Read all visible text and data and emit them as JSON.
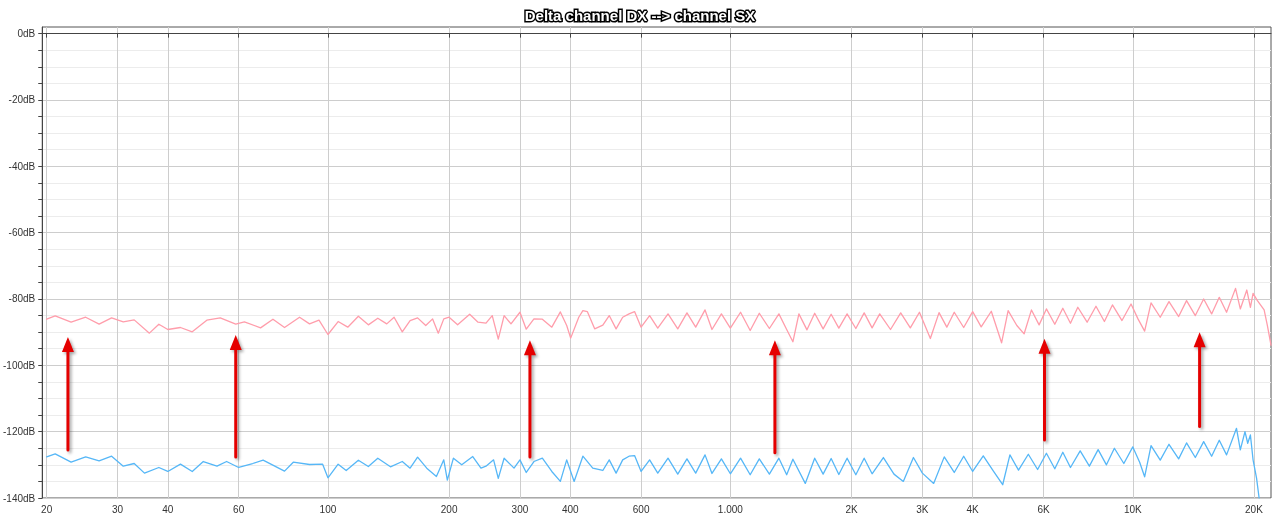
{
  "chart_data": {
    "type": "line",
    "title": "Delta channel DX --> channel SX",
    "series": [
      {
        "color": "#ff9dab",
        "x": [
          20,
          21,
          23,
          25,
          27,
          29,
          31,
          33,
          36,
          38,
          40,
          43,
          46,
          50,
          54,
          59,
          62,
          68,
          73,
          78,
          85,
          90,
          95,
          100,
          106,
          112,
          119,
          126,
          133,
          140,
          146,
          153,
          160,
          167,
          175,
          182,
          188,
          194,
          200,
          210,
          225,
          236,
          247,
          256,
          265,
          274,
          285,
          300,
          311,
          325,
          341,
          360,
          378,
          392,
          401,
          420,
          430,
          441,
          460,
          482,
          500,
          520,
          540,
          560,
          578,
          600,
          630,
          660,
          700,
          740,
          780,
          820,
          865,
          900,
          950,
          1000,
          1060,
          1120,
          1180,
          1250,
          1320,
          1380,
          1430,
          1480,
          1550,
          1620,
          1700,
          1780,
          1860,
          1950,
          2050,
          2150,
          2250,
          2350,
          2500,
          2650,
          2800,
          2950,
          3140,
          3300,
          3450,
          3600,
          3800,
          4000,
          4200,
          4450,
          4720,
          4900,
          5150,
          5370,
          5600,
          5850,
          6100,
          6400,
          6700,
          7000,
          7300,
          7700,
          8100,
          8500,
          8900,
          9400,
          9900,
          10300,
          10700,
          11100,
          11700,
          12300,
          13000,
          13600,
          14300,
          15000,
          15700,
          16400,
          17100,
          18000,
          18500,
          19200,
          19600,
          19900,
          20400,
          21200,
          21600,
          22050
        ],
        "values": [
          -86.1,
          -85.1,
          -87,
          -85.5,
          -87.6,
          -85.7,
          -86.9,
          -86.3,
          -90.3,
          -87.6,
          -89.2,
          -88.6,
          -89.9,
          -86.4,
          -85.7,
          -87.6,
          -86.9,
          -88.7,
          -86.1,
          -88.6,
          -85.5,
          -87.5,
          -86.4,
          -90.7,
          -86.8,
          -88.5,
          -85.2,
          -87.8,
          -85.8,
          -87.5,
          -85.5,
          -89.9,
          -86.5,
          -85.7,
          -88,
          -86,
          -90.3,
          -86,
          -85.5,
          -87.8,
          -84.6,
          -87,
          -87.3,
          -85,
          -92.1,
          -85,
          -87.5,
          -84,
          -89.1,
          -86,
          -86.1,
          -88.5,
          -83.9,
          -88,
          -91.8,
          -85.5,
          -83.5,
          -83.8,
          -89,
          -87.9,
          -85,
          -89,
          -85.5,
          -84.5,
          -83.8,
          -88.5,
          -85,
          -88.8,
          -84.5,
          -89,
          -84.2,
          -88.5,
          -83.3,
          -89.2,
          -84.5,
          -88.8,
          -84,
          -89.5,
          -84.3,
          -88.9,
          -84.5,
          -89.2,
          -92.9,
          -84.5,
          -89.3,
          -84.3,
          -89,
          -84.6,
          -88.8,
          -84.5,
          -88.9,
          -84.2,
          -88.7,
          -84.5,
          -89.2,
          -84.2,
          -88.7,
          -84,
          -91.9,
          -84.1,
          -88.5,
          -84,
          -88.6,
          -83.8,
          -88.4,
          -83.7,
          -93.2,
          -83.5,
          -88,
          -90.5,
          -83.3,
          -87.8,
          -83,
          -87.6,
          -82.8,
          -87.3,
          -82.5,
          -87,
          -82.2,
          -86.8,
          -81.8,
          -86.5,
          -81.5,
          -86,
          -89.7,
          -81.2,
          -85.5,
          -80.8,
          -85.3,
          -80.5,
          -85,
          -80,
          -84.5,
          -79.5,
          -84,
          -76.8,
          -83,
          -77.3,
          -82.5,
          -78.3,
          -80.5,
          -83.3,
          -88,
          -93.9
        ]
      },
      {
        "color": "#56b7f7",
        "x": [
          20,
          21,
          23,
          25,
          27,
          29,
          31,
          33,
          35,
          38,
          40,
          43,
          46,
          49,
          53,
          56,
          60,
          65,
          69,
          78,
          82,
          90,
          97,
          100,
          106,
          111,
          119,
          126,
          133,
          143,
          153,
          160,
          167,
          176,
          186,
          194,
          198,
          205,
          215,
          229,
          240,
          247,
          258,
          265,
          274,
          290,
          300,
          311,
          325,
          341,
          360,
          378,
          392,
          409,
          430,
          455,
          482,
          500,
          520,
          540,
          560,
          578,
          600,
          630,
          660,
          700,
          740,
          780,
          820,
          865,
          900,
          950,
          1000,
          1060,
          1120,
          1180,
          1250,
          1320,
          1380,
          1430,
          1535,
          1620,
          1700,
          1780,
          1860,
          1950,
          2050,
          2150,
          2250,
          2400,
          2550,
          2690,
          2850,
          3000,
          3200,
          3400,
          3600,
          3800,
          4000,
          4250,
          4500,
          4750,
          4950,
          5200,
          5500,
          5800,
          6100,
          6400,
          6700,
          7000,
          7400,
          7800,
          8200,
          8600,
          9000,
          9500,
          10000,
          10400,
          10700,
          11100,
          11700,
          12300,
          13000,
          13600,
          14300,
          15000,
          15700,
          16400,
          17100,
          18100,
          18500,
          19000,
          19300,
          19600,
          19900,
          20300,
          20600
        ],
        "values": [
          -127.6,
          -126.7,
          -129.2,
          -127.6,
          -128.8,
          -127.4,
          -130.4,
          -129.6,
          -132.5,
          -130.8,
          -132,
          -129.8,
          -132,
          -129,
          -130.4,
          -129,
          -130.8,
          -129.6,
          -128.6,
          -131.9,
          -129.2,
          -129.9,
          -129.8,
          -133.9,
          -129.8,
          -131.7,
          -128.6,
          -130.5,
          -128,
          -130.6,
          -129,
          -131,
          -127.7,
          -131,
          -133.5,
          -128.5,
          -134.6,
          -128,
          -130,
          -127.5,
          -131,
          -130.4,
          -128.5,
          -134.1,
          -128,
          -131,
          -128.5,
          -132.3,
          -129,
          -128,
          -132,
          -135,
          -128.5,
          -135,
          -127.4,
          -131,
          -131.7,
          -128.5,
          -132.5,
          -128.5,
          -127.4,
          -127.2,
          -132,
          -128.5,
          -132.5,
          -128,
          -132.8,
          -128.2,
          -132.5,
          -127,
          -132.6,
          -128.2,
          -132.7,
          -128,
          -133,
          -128.2,
          -132.8,
          -128,
          -133,
          -128.3,
          -135.6,
          -128,
          -132.8,
          -128.1,
          -132.9,
          -128,
          -133,
          -128,
          -132.7,
          -127.8,
          -132.8,
          -135,
          -127.8,
          -132.5,
          -135.6,
          -127.6,
          -132.3,
          -127.4,
          -132,
          -127.3,
          -131.8,
          -136,
          -127,
          -131.6,
          -126.8,
          -131.4,
          -126.5,
          -131.2,
          -126.2,
          -130.8,
          -125.8,
          -130.4,
          -125.4,
          -130,
          -125,
          -129.6,
          -124.6,
          -129.2,
          -133.6,
          -124.2,
          -128.6,
          -123.8,
          -128.2,
          -123.4,
          -127.8,
          -123,
          -127.4,
          -122.6,
          -127,
          -119,
          -125.5,
          -120,
          -123.5,
          -121,
          -128.5,
          -134,
          -140
        ]
      }
    ],
    "xlim": [
      19.5,
      22050
    ],
    "xticks": [
      20,
      30,
      40,
      60,
      100,
      200,
      300,
      400,
      600,
      {
        "value": 1000,
        "label": "1.000"
      },
      {
        "value": 2000,
        "label": "2K"
      },
      {
        "value": 3000,
        "label": "3K"
      },
      {
        "value": 4000,
        "label": "4K"
      },
      {
        "value": 6000,
        "label": "6K"
      },
      {
        "value": 10000,
        "label": "10K"
      },
      {
        "value": 20000,
        "label": "20K"
      }
    ],
    "ylim": [
      -140,
      2
    ],
    "yticks": [
      {
        "value": -140,
        "label": "-140dB"
      },
      {
        "value": -135,
        "label": null
      },
      {
        "value": -130,
        "label": null
      },
      {
        "value": -125,
        "label": null
      },
      {
        "value": -120,
        "label": "-120dB"
      },
      {
        "value": -115,
        "label": null
      },
      {
        "value": -110,
        "label": null
      },
      {
        "value": -105,
        "label": null
      },
      {
        "value": -100,
        "label": "-100dB"
      },
      {
        "value": -95,
        "label": null
      },
      {
        "value": -90,
        "label": null
      },
      {
        "value": -85,
        "label": null
      },
      {
        "value": -80,
        "label": "-80dB"
      },
      {
        "value": -75,
        "label": null
      },
      {
        "value": -70,
        "label": null
      },
      {
        "value": -65,
        "label": null
      },
      {
        "value": -60,
        "label": "-60dB"
      },
      {
        "value": -55,
        "label": null
      },
      {
        "value": -50,
        "label": null
      },
      {
        "value": -45,
        "label": null
      },
      {
        "value": -40,
        "label": "-40dB"
      },
      {
        "value": -35,
        "label": null
      },
      {
        "value": -30,
        "label": null
      },
      {
        "value": -25,
        "label": null
      },
      {
        "value": -20,
        "label": "-20dB"
      },
      {
        "value": -15,
        "label": null
      },
      {
        "value": -10,
        "label": null
      },
      {
        "value": -5,
        "label": null
      },
      {
        "value": 0,
        "label": "0dB"
      }
    ],
    "log": "x",
    "grid": true,
    "marker": "none",
    "line_style": "solid"
  }
}
